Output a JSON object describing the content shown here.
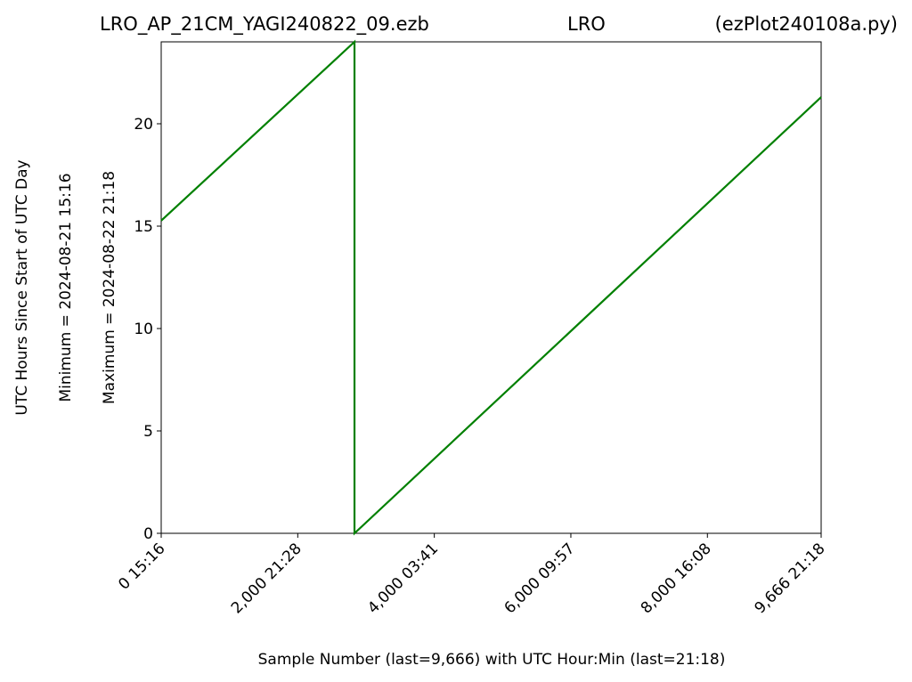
{
  "chart_data": {
    "type": "line",
    "title": [
      "LRO_AP_21CM_YAGI240822_09.ezb",
      "LRO",
      "(ezPlot240108a.py)"
    ],
    "ylabel": [
      "UTC Hours Since Start of UTC Day",
      "Minimum = 2024-08-21   15:16",
      "Maximum = 2024-08-22   21:18"
    ],
    "xlabel": "Sample Number (last=9,666) with UTC Hour:Min (last=21:18)",
    "x": [
      0,
      2831,
      2831,
      9666
    ],
    "series": [
      {
        "color": "#008000",
        "values": [
          15.27,
          24,
          0,
          21.3
        ]
      }
    ],
    "xlim": [
      0,
      9666
    ],
    "ylim": [
      0,
      24
    ],
    "xticks": [
      {
        "value": 0,
        "label": "0  15:16"
      },
      {
        "value": 2000,
        "label": "2,000  21:28"
      },
      {
        "value": 4000,
        "label": "4,000  03:41"
      },
      {
        "value": 6000,
        "label": "6,000  09:57"
      },
      {
        "value": 8000,
        "label": "8,000  16:08"
      },
      {
        "value": 9666,
        "label": "9,666  21:18"
      }
    ],
    "yticks": [
      0,
      5,
      10,
      15,
      20
    ]
  }
}
